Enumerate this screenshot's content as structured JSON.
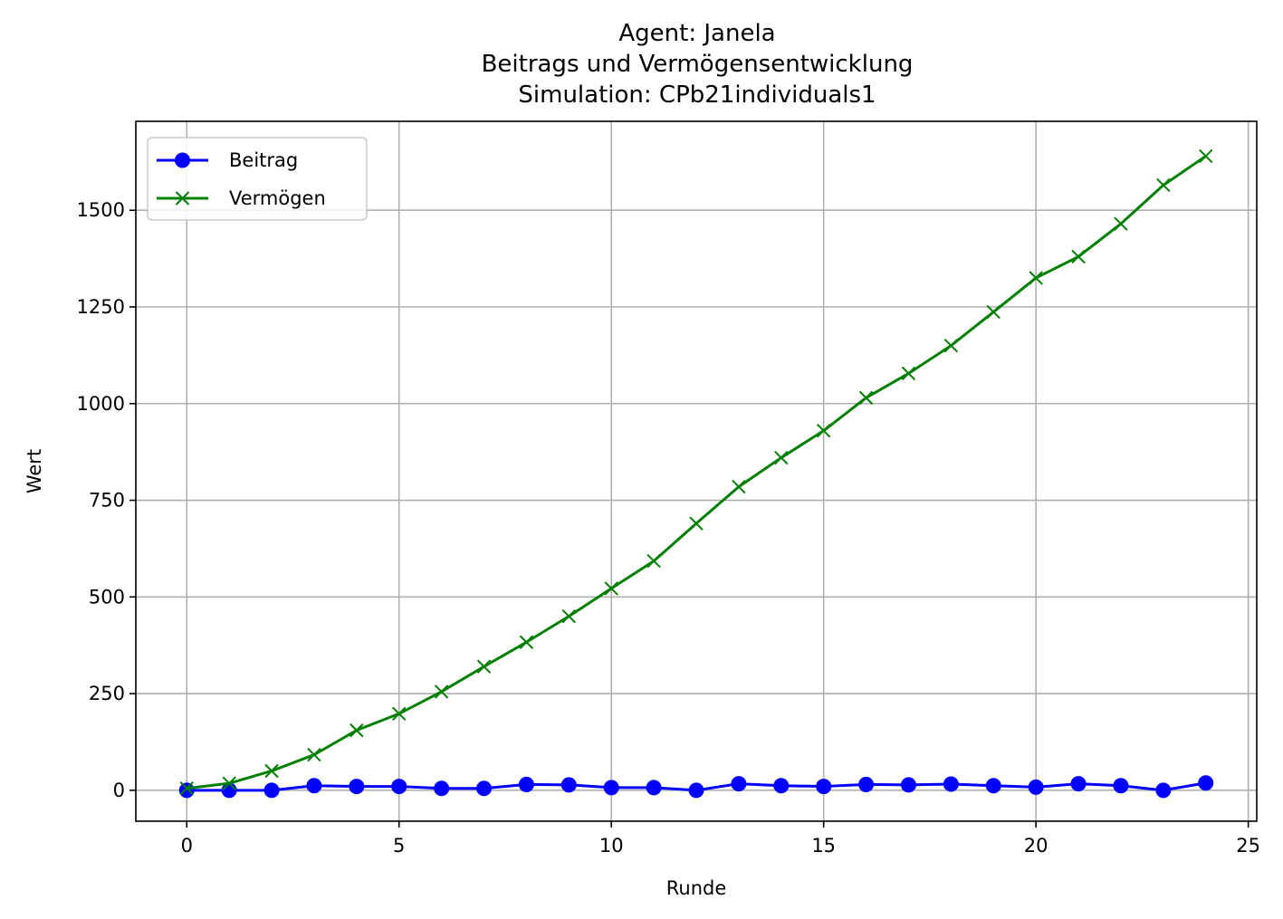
{
  "chart_data": {
    "type": "line",
    "title_lines": [
      "Agent: Janela",
      "Beitrags und Vermögensentwicklung",
      "Simulation: CPb21individuals1"
    ],
    "xlabel": "Runde",
    "ylabel": "Wert",
    "xlim": [
      -1.2,
      25.2
    ],
    "ylim": [
      -80,
      1730
    ],
    "xticks": [
      0,
      5,
      10,
      15,
      20,
      25
    ],
    "yticks": [
      0,
      250,
      500,
      750,
      1000,
      1250,
      1500
    ],
    "grid": true,
    "legend_position": "top-left",
    "x": [
      0,
      1,
      2,
      3,
      4,
      5,
      6,
      7,
      8,
      9,
      10,
      11,
      12,
      13,
      14,
      15,
      16,
      17,
      18,
      19,
      20,
      21,
      22,
      23,
      24
    ],
    "series": [
      {
        "name": "Beitrag",
        "color": "#0000ff",
        "marker": "circle",
        "values": [
          0,
          0,
          0,
          12,
          10,
          10,
          5,
          5,
          15,
          14,
          7,
          7,
          0,
          17,
          12,
          10,
          15,
          14,
          16,
          12,
          8,
          17,
          12,
          0,
          19
        ]
      },
      {
        "name": "Vermögen",
        "color": "#008000",
        "marker": "x",
        "values": [
          5,
          18,
          50,
          92,
          155,
          198,
          255,
          320,
          383,
          450,
          522,
          593,
          690,
          785,
          860,
          930,
          1015,
          1078,
          1150,
          1237,
          1325,
          1380,
          1465,
          1565,
          1640
        ]
      }
    ]
  }
}
